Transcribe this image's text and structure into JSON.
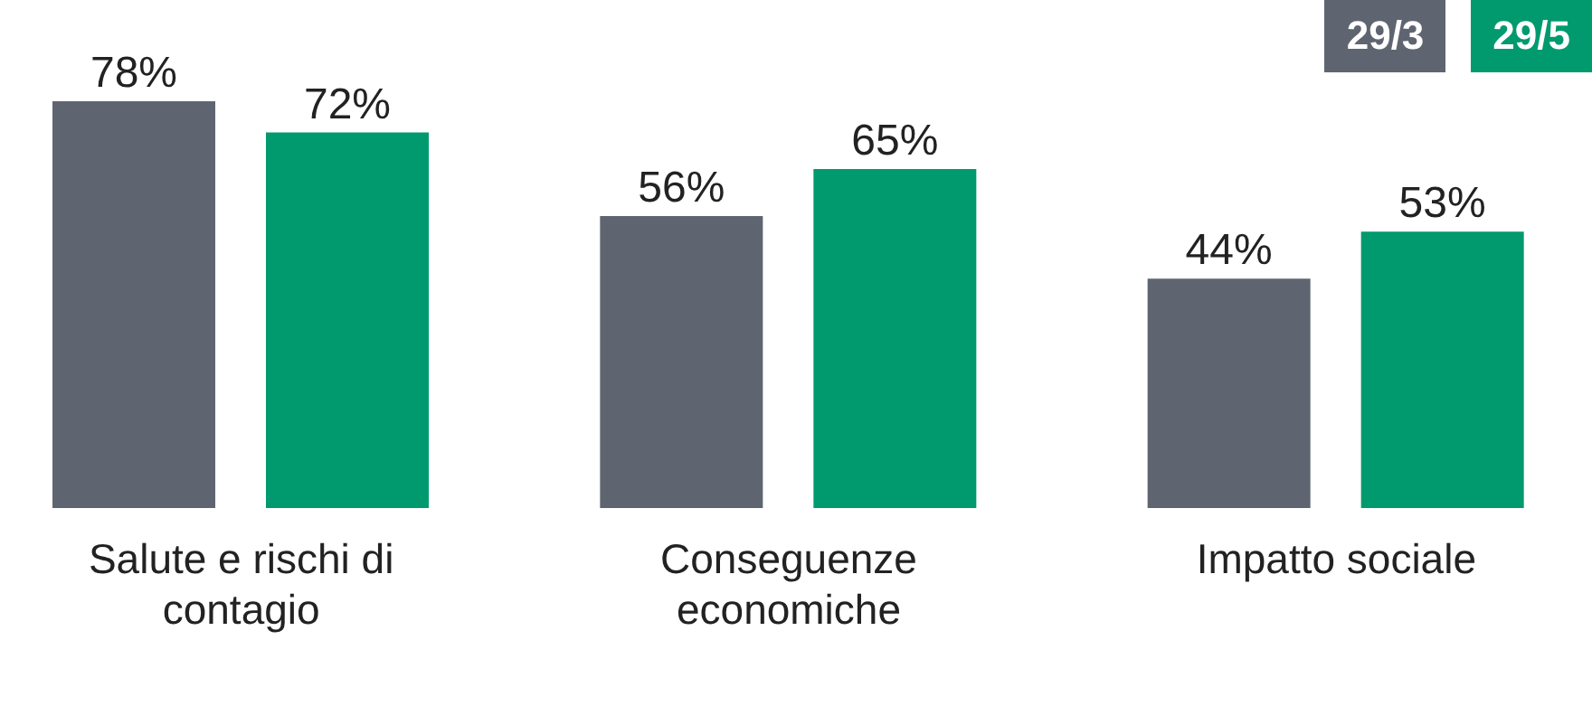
{
  "chart_data": {
    "type": "bar",
    "categories": [
      "Salute e rischi di contagio",
      "Conseguenze economiche",
      "Impatto sociale"
    ],
    "series": [
      {
        "name": "29/3",
        "color": "#5f6570",
        "values": [
          78,
          56,
          44
        ],
        "value_labels": [
          "78%",
          "56%",
          "44%"
        ]
      },
      {
        "name": "29/5",
        "color": "#009a6e",
        "values": [
          72,
          65,
          53
        ],
        "value_labels": [
          "72%",
          "65%",
          "53%"
        ]
      }
    ],
    "legend": "top right"
  }
}
